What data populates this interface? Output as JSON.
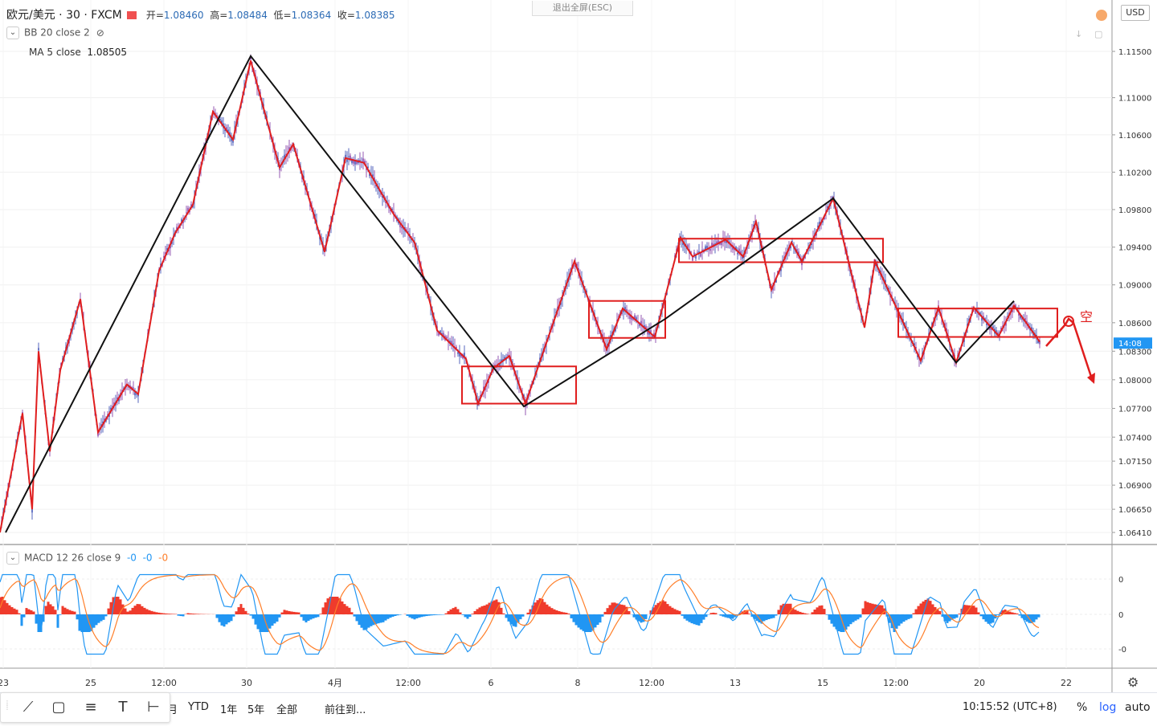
{
  "header": {
    "symbol": "欧元/美元 · 30 · FXCM",
    "open_label": "开=",
    "open": "1.08460",
    "high_label": "高=",
    "high": "1.08484",
    "low_label": "低=",
    "low": "1.08364",
    "close_label": "收=",
    "close": "1.08385",
    "exit_fullscreen": "退出全屏(ESC)",
    "currency": "USD"
  },
  "indicators": {
    "bb": "BB 20 close 2",
    "ma": "MA 5 close",
    "ma_value": "1.08505",
    "macd": "MACD 12 26 close 9",
    "macd_v1": "-0",
    "macd_v2": "-0",
    "macd_v3": "-0"
  },
  "chart_data": {
    "type": "candlestick",
    "title": "欧元/美元 · 30 · FXCM",
    "symbol": "EUR/USD",
    "interval": "30",
    "price_scale": "log",
    "price_ticks": [
      "1.11500",
      "1.11000",
      "1.10600",
      "1.10200",
      "1.09800",
      "1.09400",
      "1.09000",
      "1.08600",
      "1.08300",
      "1.08000",
      "1.07700",
      "1.07400",
      "1.07150",
      "1.06900",
      "1.06650",
      "1.06410"
    ],
    "price_ticks_num": [
      1.115,
      1.11,
      1.106,
      1.102,
      1.098,
      1.094,
      1.09,
      1.086,
      1.083,
      1.08,
      1.077,
      1.074,
      1.0715,
      1.069,
      1.0665,
      1.0641
    ],
    "current_price_tag": "14:08",
    "time_ticks": [
      "23",
      "25",
      "12:00",
      "30",
      "4月",
      "12:00",
      "6",
      "8",
      "12:00",
      "13",
      "15",
      "12:00",
      "20",
      "22"
    ],
    "red_zigzag": [
      [
        0,
        1.0641
      ],
      [
        28,
        1.0765
      ],
      [
        40,
        1.0665
      ],
      [
        48,
        1.083
      ],
      [
        62,
        1.0725
      ],
      [
        75,
        1.081
      ],
      [
        100,
        1.0885
      ],
      [
        122,
        1.0745
      ],
      [
        158,
        1.0795
      ],
      [
        172,
        1.0785
      ],
      [
        198,
        1.0915
      ],
      [
        218,
        1.0955
      ],
      [
        240,
        1.0985
      ],
      [
        265,
        1.1085
      ],
      [
        290,
        1.1055
      ],
      [
        312,
        1.114
      ],
      [
        348,
        1.1025
      ],
      [
        365,
        1.105
      ],
      [
        404,
        1.0935
      ],
      [
        430,
        1.1035
      ],
      [
        453,
        1.103
      ],
      [
        490,
        1.0975
      ],
      [
        516,
        1.0945
      ],
      [
        544,
        1.0852
      ],
      [
        580,
        1.0822
      ],
      [
        595,
        1.0775
      ],
      [
        614,
        1.0812
      ],
      [
        634,
        1.0825
      ],
      [
        654,
        1.0775
      ],
      [
        715,
        1.0925
      ],
      [
        755,
        1.0832
      ],
      [
        775,
        1.0875
      ],
      [
        815,
        1.0845
      ],
      [
        847,
        1.095
      ],
      [
        862,
        1.093
      ],
      [
        903,
        1.0948
      ],
      [
        925,
        1.093
      ],
      [
        941,
        1.0967
      ],
      [
        960,
        1.0895
      ],
      [
        985,
        1.0945
      ],
      [
        998,
        1.0925
      ],
      [
        1037,
        1.0992
      ],
      [
        1076,
        1.0855
      ],
      [
        1089,
        1.0925
      ],
      [
        1146,
        1.082
      ],
      [
        1168,
        1.0876
      ],
      [
        1190,
        1.0818
      ],
      [
        1212,
        1.0876
      ],
      [
        1243,
        1.0846
      ],
      [
        1262,
        1.0878
      ],
      [
        1294,
        1.084
      ]
    ],
    "black_lines": [
      [
        7,
        1.0641
      ],
      [
        312,
        1.1145
      ],
      [
        652,
        1.0772
      ],
      [
        828,
        1.0864
      ],
      [
        1037,
        1.0992
      ],
      [
        1190,
        1.0818
      ],
      [
        1262,
        1.0883
      ]
    ],
    "boxes": [
      {
        "x1": 575,
        "x2": 717,
        "top": 1.0814,
        "bottom": 1.0775
      },
      {
        "x1": 733,
        "x2": 828,
        "top": 1.0883,
        "bottom": 1.0844
      },
      {
        "x1": 845,
        "x2": 1099,
        "top": 1.0949,
        "bottom": 1.0924
      },
      {
        "x1": 1118,
        "x2": 1316,
        "top": 1.0875,
        "bottom": 1.0845
      }
    ],
    "annotation": "空",
    "macd": {
      "zero_label": "0",
      "upper_label": "0",
      "lower_label": "-0"
    }
  },
  "colors": {
    "candle_up": "#2b3fae",
    "candle_down": "#2b3fae",
    "zigzag": "#e01e1e",
    "trend": "#111111",
    "macd_line": "#2196f3",
    "signal_line": "#ff7f2a",
    "hist_up": "#ef3b2c",
    "hist_down": "#2196f3",
    "price_tag": "#2196f3"
  },
  "bottom": {
    "ranges": [
      "月",
      "YTD",
      "1年",
      "5年",
      "全部"
    ],
    "goto": "前往到...",
    "clock": "10:15:52 (UTC+8)",
    "pct": "%",
    "log": "log",
    "auto": "auto"
  },
  "icons": [
    "trend-line-icon",
    "rectangle-icon",
    "horizontal-lines-icon",
    "text-icon",
    "measure-icon",
    "gear-icon",
    "eye-off-icon",
    "chevron-down-icon"
  ]
}
